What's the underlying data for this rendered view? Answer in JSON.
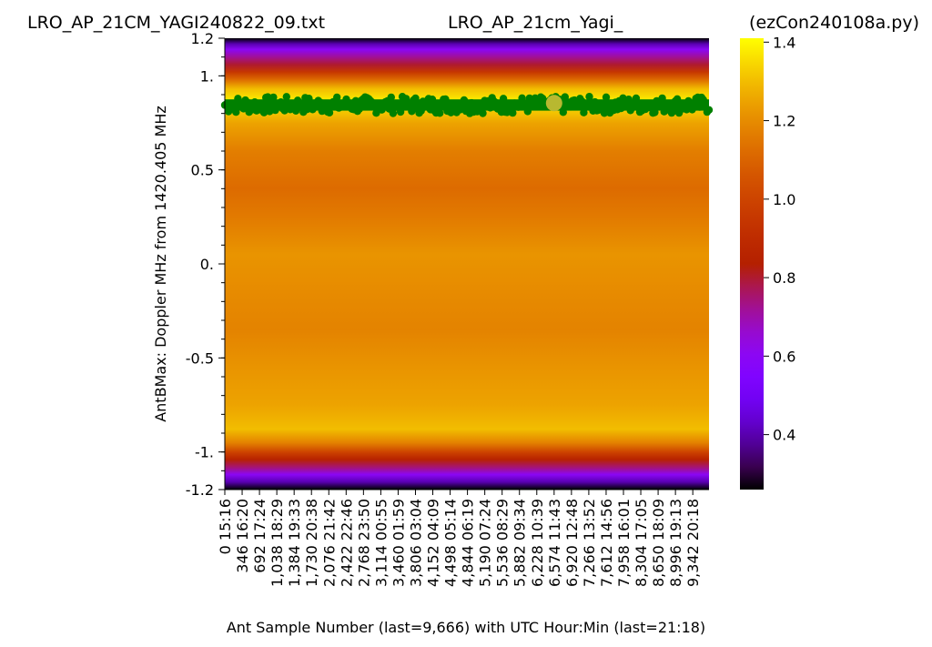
{
  "chart_data": {
    "type": "heatmap",
    "titles": {
      "left": "LRO_AP_21CM_YAGI240822_09.txt",
      "center": "LRO_AP_21cm_Yagi_",
      "right": "(ezCon240108a.py)"
    },
    "xlabel": "Ant Sample Number (last=9,666) with UTC Hour:Min (last=21:18)",
    "ylabel": "AntBMax:  Doppler MHz from 1420.405 MHz",
    "ylim": [
      -1.2,
      1.2
    ],
    "xlim": [
      0,
      9666
    ],
    "y_ticks": [
      {
        "value": 1.2,
        "label": "1.2"
      },
      {
        "value": 1.0,
        "label": "1."
      },
      {
        "value": 0.5,
        "label": "0.5"
      },
      {
        "value": 0.0,
        "label": "0."
      },
      {
        "value": -0.5,
        "label": "-0.5"
      },
      {
        "value": -1.0,
        "label": "-1."
      },
      {
        "value": -1.2,
        "label": "-1.2"
      }
    ],
    "x_ticks": [
      {
        "value": 0,
        "label": "0  15:16"
      },
      {
        "value": 346,
        "label": "346  16:20"
      },
      {
        "value": 692,
        "label": "692  17:24"
      },
      {
        "value": 1038,
        "label": "1,038  18:29"
      },
      {
        "value": 1384,
        "label": "1,384  19:33"
      },
      {
        "value": 1730,
        "label": "1,730  20:38"
      },
      {
        "value": 2076,
        "label": "2,076  21:42"
      },
      {
        "value": 2422,
        "label": "2,422  22:46"
      },
      {
        "value": 2768,
        "label": "2,768  23:50"
      },
      {
        "value": 3114,
        "label": "3,114  00:55"
      },
      {
        "value": 3460,
        "label": "3,460  01:59"
      },
      {
        "value": 3806,
        "label": "3,806  03:04"
      },
      {
        "value": 4152,
        "label": "4,152  04:09"
      },
      {
        "value": 4498,
        "label": "4,498  05:14"
      },
      {
        "value": 4844,
        "label": "4,844  06:19"
      },
      {
        "value": 5190,
        "label": "5,190  07:24"
      },
      {
        "value": 5536,
        "label": "5,536  08:29"
      },
      {
        "value": 5882,
        "label": "5,882  09:34"
      },
      {
        "value": 6228,
        "label": "6,228  10:39"
      },
      {
        "value": 6574,
        "label": "6,574  11:43"
      },
      {
        "value": 6920,
        "label": "6,920  12:48"
      },
      {
        "value": 7266,
        "label": "7,266  13:52"
      },
      {
        "value": 7612,
        "label": "7,612  14:56"
      },
      {
        "value": 7958,
        "label": "7,958  16:01"
      },
      {
        "value": 8304,
        "label": "8,304  17:05"
      },
      {
        "value": 8650,
        "label": "8,650  18:09"
      },
      {
        "value": 8996,
        "label": "8,996  19:13"
      },
      {
        "value": 9342,
        "label": "9,342  20:18"
      }
    ],
    "colorbar": {
      "min": 0.26,
      "max": 1.41,
      "ticks": [
        1.4,
        1.2,
        1.0,
        0.8,
        0.6,
        0.4
      ],
      "colormap": "gnuplot"
    },
    "intensity_profile": [
      {
        "y": 1.2,
        "v": 0.26
      },
      {
        "y": 1.17,
        "v": 0.4
      },
      {
        "y": 1.14,
        "v": 0.6
      },
      {
        "y": 1.1,
        "v": 0.72
      },
      {
        "y": 1.06,
        "v": 0.8
      },
      {
        "y": 1.02,
        "v": 0.95
      },
      {
        "y": 0.98,
        "v": 1.12
      },
      {
        "y": 0.93,
        "v": 1.3
      },
      {
        "y": 0.87,
        "v": 1.38
      },
      {
        "y": 0.82,
        "v": 1.33
      },
      {
        "y": 0.75,
        "v": 1.25
      },
      {
        "y": 0.6,
        "v": 1.17
      },
      {
        "y": 0.4,
        "v": 1.12
      },
      {
        "y": 0.25,
        "v": 1.16
      },
      {
        "y": 0.05,
        "v": 1.22
      },
      {
        "y": -0.15,
        "v": 1.2
      },
      {
        "y": -0.35,
        "v": 1.18
      },
      {
        "y": -0.55,
        "v": 1.22
      },
      {
        "y": -0.75,
        "v": 1.25
      },
      {
        "y": -0.88,
        "v": 1.3
      },
      {
        "y": -0.95,
        "v": 1.18
      },
      {
        "y": -1.0,
        "v": 1.0
      },
      {
        "y": -1.04,
        "v": 0.85
      },
      {
        "y": -1.08,
        "v": 0.75
      },
      {
        "y": -1.12,
        "v": 0.6
      },
      {
        "y": -1.16,
        "v": 0.4
      },
      {
        "y": -1.2,
        "v": 0.26
      }
    ],
    "ridge": {
      "y_center": 0.845,
      "y_spread": 0.045,
      "color": "#008000"
    },
    "marker": {
      "x": 6574,
      "y": 0.855,
      "color": "#b8b830"
    }
  }
}
